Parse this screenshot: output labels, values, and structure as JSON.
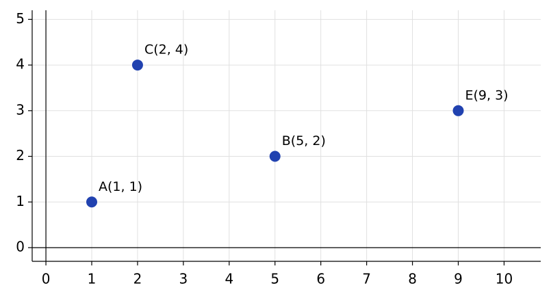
{
  "chart_data": {
    "type": "scatter",
    "x": [
      1,
      5,
      2,
      9
    ],
    "series": [
      {
        "color": "#2142b0",
        "values": [
          1,
          2,
          4,
          3
        ]
      }
    ],
    "point_labels": [
      "A(1, 1)",
      "B(5, 2)",
      "C(2, 4)",
      "E(9, 3)"
    ],
    "xlim": [
      -0.3,
      10.8
    ],
    "ylim": [
      -0.3,
      5.2
    ],
    "xticks": [
      0,
      1,
      2,
      3,
      4,
      5,
      6,
      7,
      8,
      9,
      10
    ],
    "yticks": [
      0,
      1,
      2,
      3,
      4,
      5
    ],
    "grid": true
  }
}
